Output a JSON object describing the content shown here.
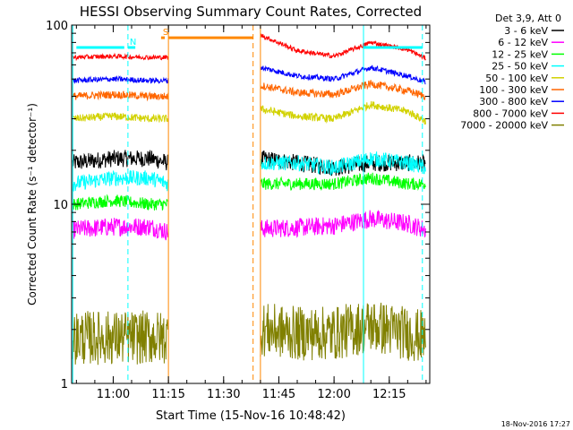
{
  "chart_data": {
    "type": "line",
    "title": "HESSI Observing Summary Count Rates, Corrected",
    "xlabel": "Start Time (15-Nov-16 10:48:42)",
    "ylabel": "Corrected Count Rate (s⁻¹ detector⁻¹)",
    "yscale": "log",
    "xlim": [
      "10:48:42",
      "12:26:00"
    ],
    "ylim": [
      1,
      100
    ],
    "x_ticks": [
      "11:00",
      "11:15",
      "11:30",
      "11:45",
      "12:00",
      "12:15"
    ],
    "y_ticks": [
      "1",
      "10",
      "100"
    ],
    "legend": {
      "placement": "outside right",
      "header": "Det 3,9, Att 0",
      "entries": [
        {
          "label": "3 - 6 keV",
          "color": "#000000"
        },
        {
          "label": "6 - 12 keV",
          "color": "#ff00ff"
        },
        {
          "label": "12 - 25 keV",
          "color": "#00ff00"
        },
        {
          "label": "25 - 50 keV",
          "color": "#00ffff"
        },
        {
          "label": "50 - 100 keV",
          "color": "#d2d200"
        },
        {
          "label": "100 - 300 keV",
          "color": "#ff6600"
        },
        {
          "label": "300 - 800 keV",
          "color": "#0000ff"
        },
        {
          "label": "800 - 7000 keV",
          "color": "#ff0000"
        },
        {
          "label": "7000 - 20000 keV",
          "color": "#808000"
        }
      ]
    },
    "flag_bars": [
      {
        "label": "",
        "start": "10:50",
        "end": "11:03",
        "level": 75,
        "color": "#00ffff"
      },
      {
        "label": "N",
        "start": "11:04",
        "end": "11:06",
        "level": 75,
        "color": "#00ffff"
      },
      {
        "label": "S",
        "start": "11:13",
        "end": "11:14",
        "level": 85,
        "color": "#ff8800"
      },
      {
        "label": "",
        "start": "11:15",
        "end": "11:38",
        "level": 85,
        "color": "#ff8800"
      },
      {
        "label": "",
        "start": "12:08",
        "end": "12:24",
        "level": 75,
        "color": "#00ffff"
      }
    ],
    "vertical_markers": [
      {
        "time": "10:49",
        "color": "#00ffff",
        "style": "solid"
      },
      {
        "time": "11:04",
        "color": "#00ffff",
        "style": "dashed"
      },
      {
        "time": "11:15",
        "color": "#ff8800",
        "style": "solid"
      },
      {
        "time": "11:38",
        "color": "#ff8800",
        "style": "dashed"
      },
      {
        "time": "11:40",
        "color": "#ff8800",
        "style": "solid"
      },
      {
        "time": "12:08",
        "color": "#00ffff",
        "style": "solid"
      },
      {
        "time": "12:24",
        "color": "#00ffff",
        "style": "dashed"
      }
    ],
    "data_gaps": [
      {
        "start": "11:15",
        "end": "11:40"
      }
    ],
    "series": [
      {
        "name": "3 - 6 keV",
        "color": "#000000",
        "x": [
          "10:49",
          "11:00",
          "11:10",
          "11:15",
          "11:40",
          "11:50",
          "12:00",
          "12:10",
          "12:20",
          "12:25"
        ],
        "values": [
          17,
          18,
          18,
          17,
          18,
          17,
          16,
          17,
          17,
          17
        ]
      },
      {
        "name": "6 - 12 keV",
        "color": "#ff00ff",
        "x": [
          "10:49",
          "11:00",
          "11:10",
          "11:15",
          "11:40",
          "11:50",
          "12:00",
          "12:10",
          "12:20",
          "12:25"
        ],
        "values": [
          7.2,
          7.5,
          7.5,
          7,
          7.3,
          7.4,
          7.6,
          8.3,
          7.8,
          7.2
        ]
      },
      {
        "name": "12 - 25 keV",
        "color": "#00ff00",
        "x": [
          "10:49",
          "11:00",
          "11:10",
          "11:15",
          "11:40",
          "11:50",
          "12:00",
          "12:10",
          "12:20",
          "12:25"
        ],
        "values": [
          10,
          10.5,
          10,
          10,
          13,
          13,
          13,
          14,
          13,
          13
        ]
      },
      {
        "name": "25 - 50 keV",
        "color": "#00ffff",
        "x": [
          "10:49",
          "11:00",
          "11:10",
          "11:15",
          "11:40",
          "11:50",
          "12:00",
          "12:10",
          "12:20",
          "12:25"
        ],
        "values": [
          13,
          14,
          14,
          13,
          17,
          17,
          16,
          18,
          17,
          16
        ]
      },
      {
        "name": "50 - 100 keV",
        "color": "#d2d200",
        "x": [
          "10:49",
          "11:00",
          "11:10",
          "11:15",
          "11:40",
          "11:50",
          "12:00",
          "12:10",
          "12:20",
          "12:25"
        ],
        "values": [
          30,
          31,
          30,
          30,
          34,
          31,
          30,
          36,
          33,
          29
        ]
      },
      {
        "name": "100 - 300 keV",
        "color": "#ff6600",
        "x": [
          "10:49",
          "11:00",
          "11:10",
          "11:15",
          "11:40",
          "11:50",
          "12:00",
          "12:10",
          "12:20",
          "12:25"
        ],
        "values": [
          40,
          41,
          40,
          40,
          46,
          42,
          41,
          47,
          43,
          40
        ]
      },
      {
        "name": "300 - 800 keV",
        "color": "#0000ff",
        "x": [
          "10:49",
          "11:00",
          "11:10",
          "11:15",
          "11:40",
          "11:50",
          "12:00",
          "12:10",
          "12:20",
          "12:25"
        ],
        "values": [
          49,
          50,
          49,
          49,
          58,
          52,
          50,
          58,
          52,
          48
        ]
      },
      {
        "name": "800 - 7000 keV",
        "color": "#ff0000",
        "x": [
          "10:49",
          "11:00",
          "11:10",
          "11:15",
          "11:40",
          "11:50",
          "12:00",
          "12:10",
          "12:20",
          "12:25"
        ],
        "values": [
          66,
          67,
          66,
          66,
          88,
          72,
          67,
          80,
          73,
          65
        ]
      },
      {
        "name": "7000 - 20000 keV",
        "color": "#808000",
        "x": [
          "10:49",
          "11:00",
          "11:10",
          "11:15",
          "11:40",
          "11:50",
          "12:00",
          "12:10",
          "12:20",
          "12:25"
        ],
        "values": [
          1.8,
          1.8,
          1.8,
          1.8,
          2,
          1.9,
          1.9,
          2.1,
          1.9,
          1.8
        ]
      }
    ],
    "grid": false
  },
  "footer": {
    "timestamp": "18-Nov-2016 17:27"
  }
}
